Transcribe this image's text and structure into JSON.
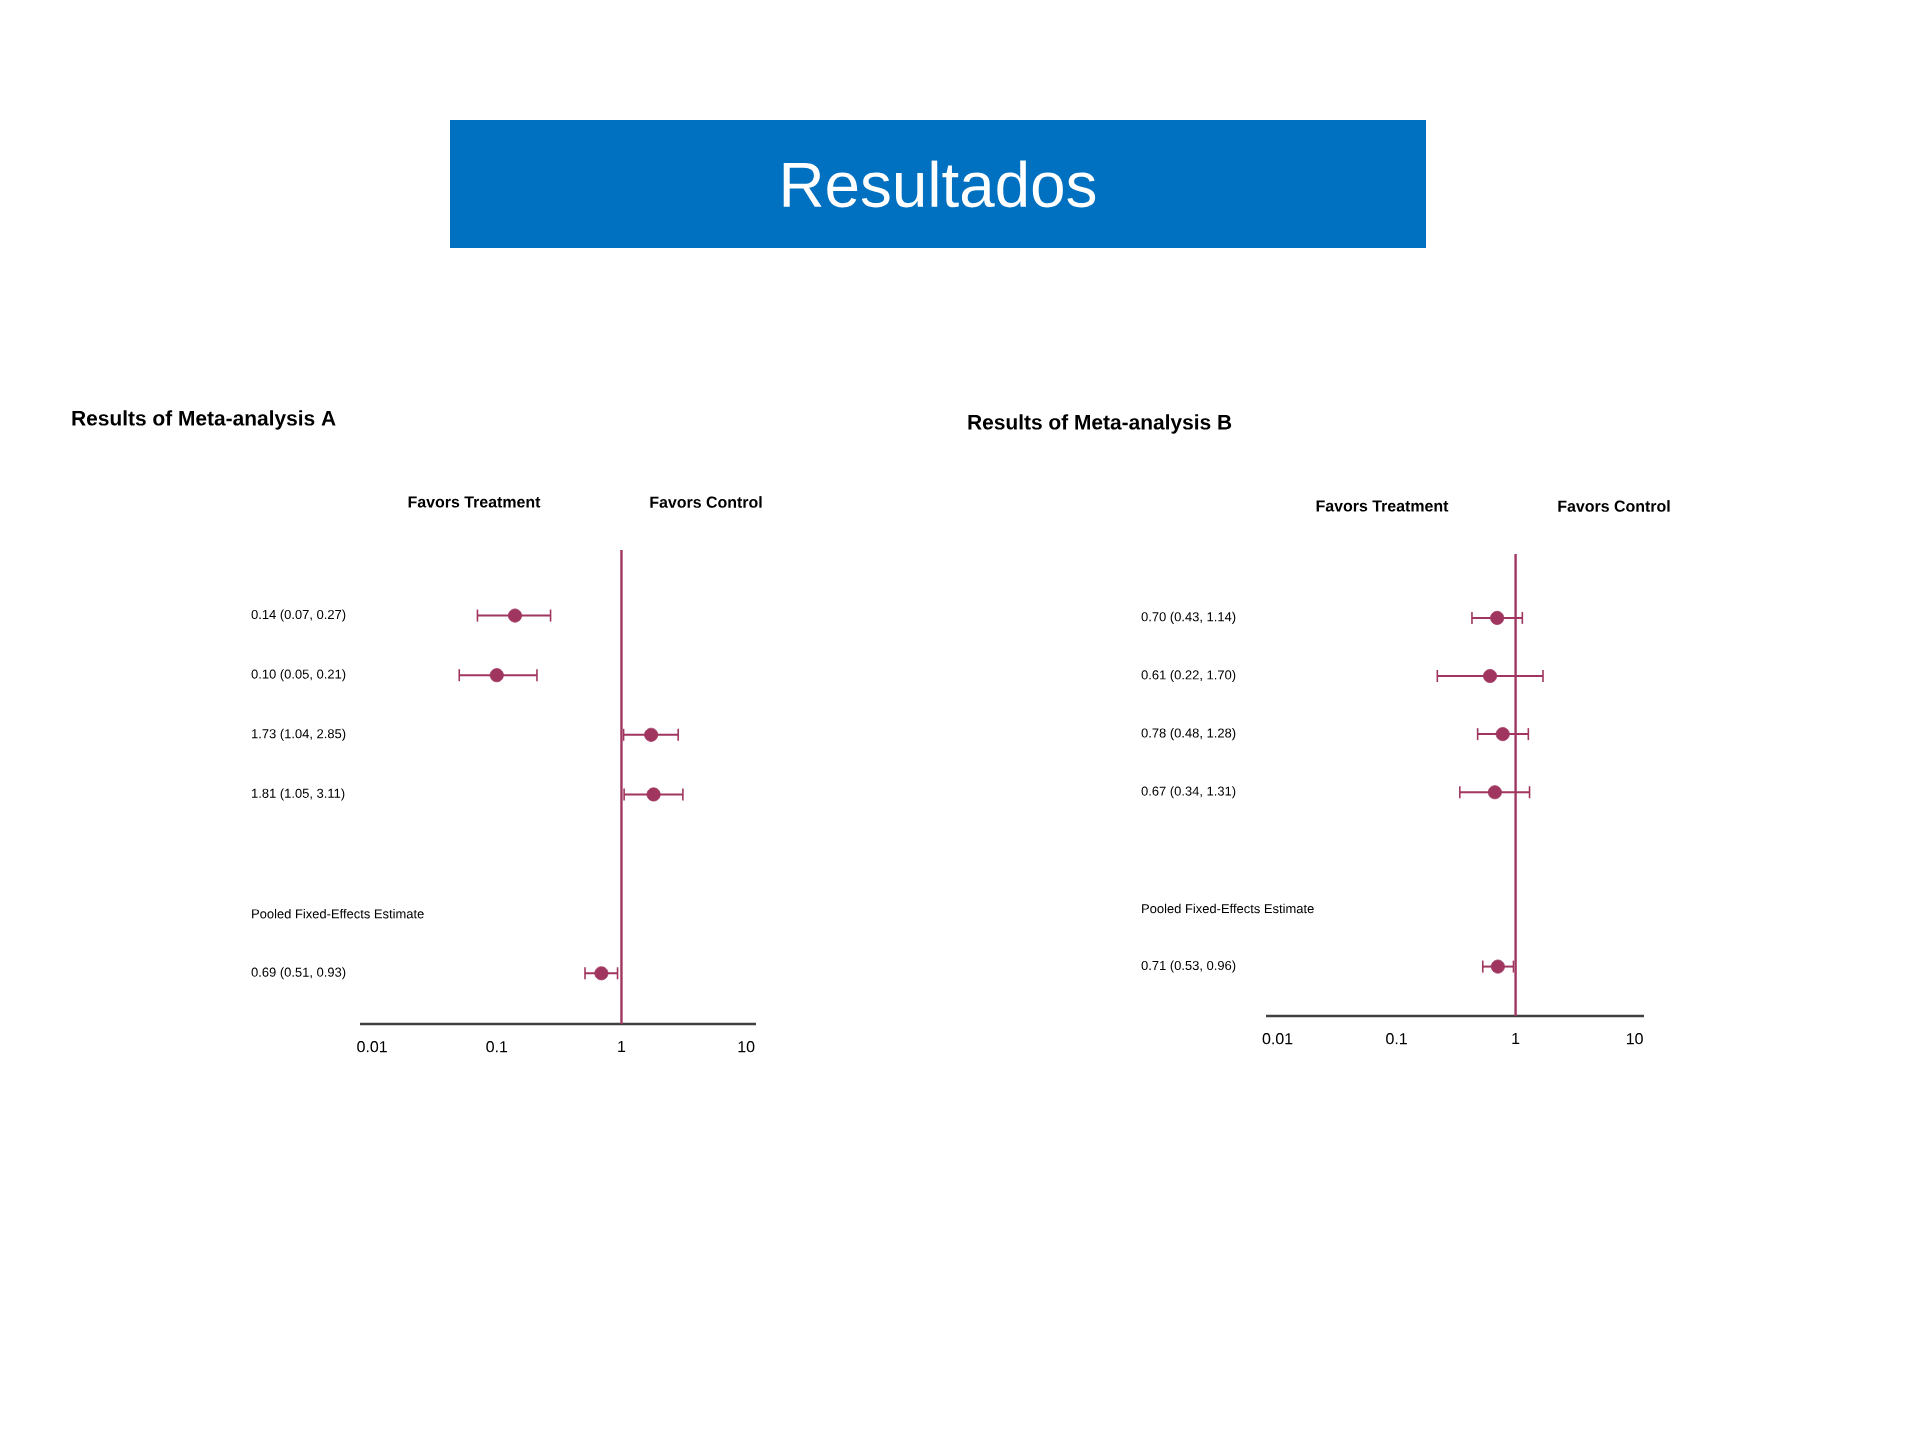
{
  "chart_data": [
    {
      "type": "other",
      "title": "Resultados",
      "color": "#0070c0"
    },
    {
      "type": "scatter",
      "title": "Results of Meta-analysis A",
      "orientation": "horizontal",
      "log": "x",
      "marker": "circle",
      "color": "#a0365f",
      "categories": [
        "0.14 (0.07, 0.27)",
        "0.10 (0.05, 0.21)",
        "1.73 (1.04, 2.85)",
        "1.81 (1.05, 3.11)",
        null,
        "Pooled Fixed-Effects Estimate",
        "0.69 (0.51, 0.93)"
      ],
      "values": [
        0.14,
        0.1,
        1.73,
        1.81,
        null,
        null,
        0.69
      ],
      "errors": [
        [
          0.07,
          0.27
        ],
        [
          0.05,
          0.21
        ],
        [
          1.04,
          2.85
        ],
        [
          1.05,
          3.11
        ],
        null,
        null,
        [
          0.51,
          0.93
        ]
      ],
      "xlim": [
        0.008,
        12
      ],
      "xticks": [
        0.01,
        0.1,
        1,
        10
      ],
      "ref_lines": [
        {
          "axis": "x",
          "value": 1,
          "color": "#a0365f"
        }
      ],
      "annotations": [
        "Favors Treatment",
        "Favors Control"
      ]
    },
    {
      "type": "scatter",
      "title": "Results of Meta-analysis B",
      "orientation": "horizontal",
      "log": "x",
      "marker": "circle",
      "color": "#a0365f",
      "categories": [
        "0.70 (0.43, 1.14)",
        "0.61 (0.22, 1.70)",
        "0.78 (0.48, 1.28)",
        "0.67 (0.34, 1.31)",
        null,
        "Pooled Fixed-Effects Estimate",
        "0.71 (0.53, 0.96)"
      ],
      "values": [
        0.7,
        0.61,
        0.78,
        0.67,
        null,
        null,
        0.71
      ],
      "errors": [
        [
          0.43,
          1.14
        ],
        [
          0.22,
          1.7
        ],
        [
          0.48,
          1.28
        ],
        [
          0.34,
          1.31
        ],
        null,
        null,
        [
          0.53,
          0.96
        ]
      ],
      "xlim": [
        0.008,
        12
      ],
      "xticks": [
        0.01,
        0.1,
        1,
        10
      ],
      "ref_lines": [
        {
          "axis": "x",
          "value": 1,
          "color": "#a0365f"
        }
      ],
      "annotations": [
        "Favors Treatment",
        "Favors Control"
      ]
    }
  ]
}
